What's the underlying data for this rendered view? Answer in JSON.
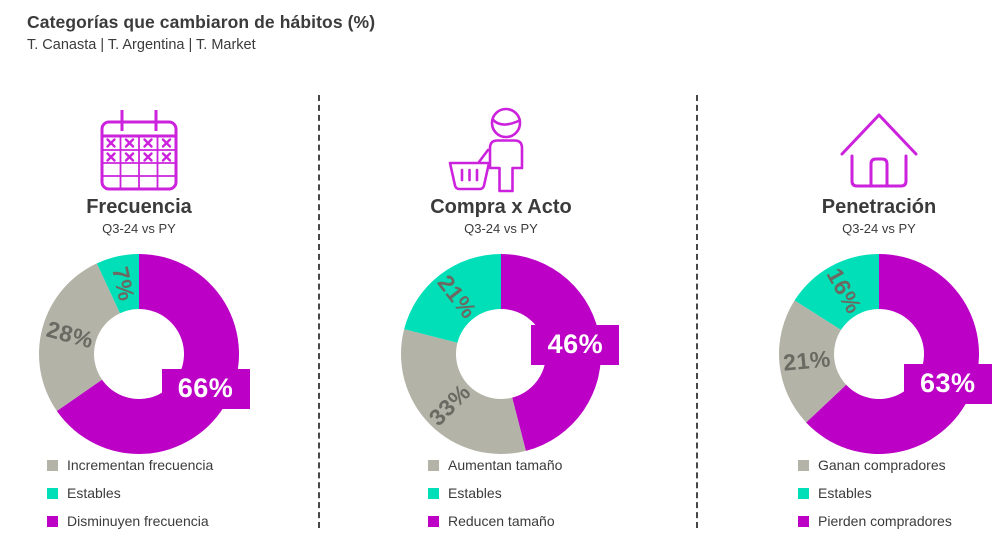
{
  "header": {
    "title": "Categorías que cambiaron de hábitos (%)",
    "subtitle": "T. Canasta | T. Argentina | T. Market"
  },
  "colors": {
    "magenta": "#BC00C6",
    "teal": "#00DFB7",
    "gray": "#B3B3A7",
    "slice_label_text": "#6A6A63",
    "callout_text": "#FFFFFF",
    "heading_text": "#3B3B3B",
    "icon_stroke": "#CC22DD",
    "divider": "#474747"
  },
  "chart_data": [
    {
      "type": "donut",
      "title": "Frecuencia",
      "period": "Q3-24 vs PY",
      "icon": "calendar-icon",
      "start": "12 o'clock, clockwise",
      "hole_ratio": 0.45,
      "segments": [
        {
          "name": "Disminuyen frecuencia",
          "value": 66,
          "display": "66%",
          "color": "#BC00C6",
          "label_style": "box"
        },
        {
          "name": "Incrementan frecuencia",
          "value": 28,
          "display": "28%",
          "color": "#B3B3A7",
          "label_style": "rotated"
        },
        {
          "name": "Estables",
          "value": 7,
          "display": "7%",
          "color": "#00DFB7",
          "label_style": "rotated"
        }
      ],
      "legend": [
        {
          "label": "Incrementan frecuencia",
          "color": "#B3B3A7"
        },
        {
          "label": "Estables",
          "color": "#00DFB7"
        },
        {
          "label": "Disminuyen frecuencia",
          "color": "#BC00C6"
        }
      ]
    },
    {
      "type": "donut",
      "title": "Compra x Acto",
      "period": "Q3-24 vs PY",
      "icon": "shopper-basket-icon",
      "start": "12 o'clock, clockwise",
      "hole_ratio": 0.45,
      "segments": [
        {
          "name": "Reducen tamaño",
          "value": 46,
          "display": "46%",
          "color": "#BC00C6",
          "label_style": "box"
        },
        {
          "name": "Aumentan tamaño",
          "value": 33,
          "display": "33%",
          "color": "#B3B3A7",
          "label_style": "rotated"
        },
        {
          "name": "Estables",
          "value": 21,
          "display": "21%",
          "color": "#00DFB7",
          "label_style": "rotated"
        }
      ],
      "legend": [
        {
          "label": "Aumentan tamaño",
          "color": "#B3B3A7"
        },
        {
          "label": "Estables",
          "color": "#00DFB7"
        },
        {
          "label": "Reducen tamaño",
          "color": "#BC00C6"
        }
      ]
    },
    {
      "type": "donut",
      "title": "Penetración",
      "period": "Q3-24 vs PY",
      "icon": "house-icon",
      "start": "12 o'clock, clockwise",
      "hole_ratio": 0.45,
      "segments": [
        {
          "name": "Pierden compradores",
          "value": 63,
          "display": "63%",
          "color": "#BC00C6",
          "label_style": "box"
        },
        {
          "name": "Ganan compradores",
          "value": 21,
          "display": "21%",
          "color": "#B3B3A7",
          "label_style": "rotated"
        },
        {
          "name": "Estables",
          "value": 16,
          "display": "16%",
          "color": "#00DFB7",
          "label_style": "rotated"
        }
      ],
      "legend": [
        {
          "label": "Ganan compradores",
          "color": "#B3B3A7"
        },
        {
          "label": "Estables",
          "color": "#00DFB7"
        },
        {
          "label": "Pierden compradores",
          "color": "#BC00C6"
        }
      ]
    }
  ]
}
